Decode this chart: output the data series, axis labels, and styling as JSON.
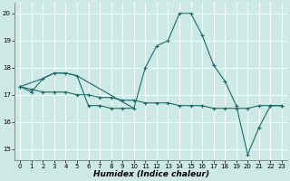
{
  "xlabel": "Humidex (Indice chaleur)",
  "bg_color": "#cce9e5",
  "line_color": "#1a6b6b",
  "grid_color": "#ffffff",
  "xlim": [
    -0.5,
    23.5
  ],
  "ylim": [
    14.6,
    20.4
  ],
  "xticks": [
    0,
    1,
    2,
    3,
    4,
    5,
    6,
    7,
    8,
    9,
    10,
    11,
    12,
    13,
    14,
    15,
    16,
    17,
    18,
    19,
    20,
    21,
    22,
    23
  ],
  "yticks": [
    15,
    16,
    17,
    18,
    19,
    20
  ],
  "spike_x": [
    0,
    1,
    2,
    3,
    4,
    5,
    6,
    7,
    8,
    9,
    10,
    11,
    12,
    13,
    14,
    15,
    16,
    17,
    18,
    19,
    20,
    21,
    22,
    23
  ],
  "spike_y": [
    17.3,
    17.1,
    17.6,
    17.8,
    17.8,
    17.7,
    16.6,
    16.6,
    16.5,
    16.5,
    16.5,
    18.0,
    18.8,
    19.0,
    20.0,
    20.0,
    19.2,
    18.1,
    17.5,
    16.6,
    14.8,
    15.8,
    16.6,
    16.6
  ],
  "flat_x": [
    0,
    1,
    2,
    3,
    4,
    5,
    6,
    7,
    8,
    9,
    10,
    11,
    12,
    13,
    14,
    15,
    16,
    17,
    18,
    19,
    20,
    21,
    22,
    23
  ],
  "flat_y": [
    17.3,
    17.2,
    17.1,
    17.1,
    17.1,
    17.0,
    17.0,
    16.9,
    16.9,
    16.8,
    16.8,
    16.7,
    16.7,
    16.7,
    16.6,
    16.6,
    16.6,
    16.5,
    16.5,
    16.5,
    16.5,
    16.6,
    16.6,
    16.6
  ],
  "short_x": [
    0,
    2,
    3,
    4,
    5,
    10
  ],
  "short_y": [
    17.3,
    17.6,
    17.8,
    17.8,
    17.7,
    16.5
  ]
}
